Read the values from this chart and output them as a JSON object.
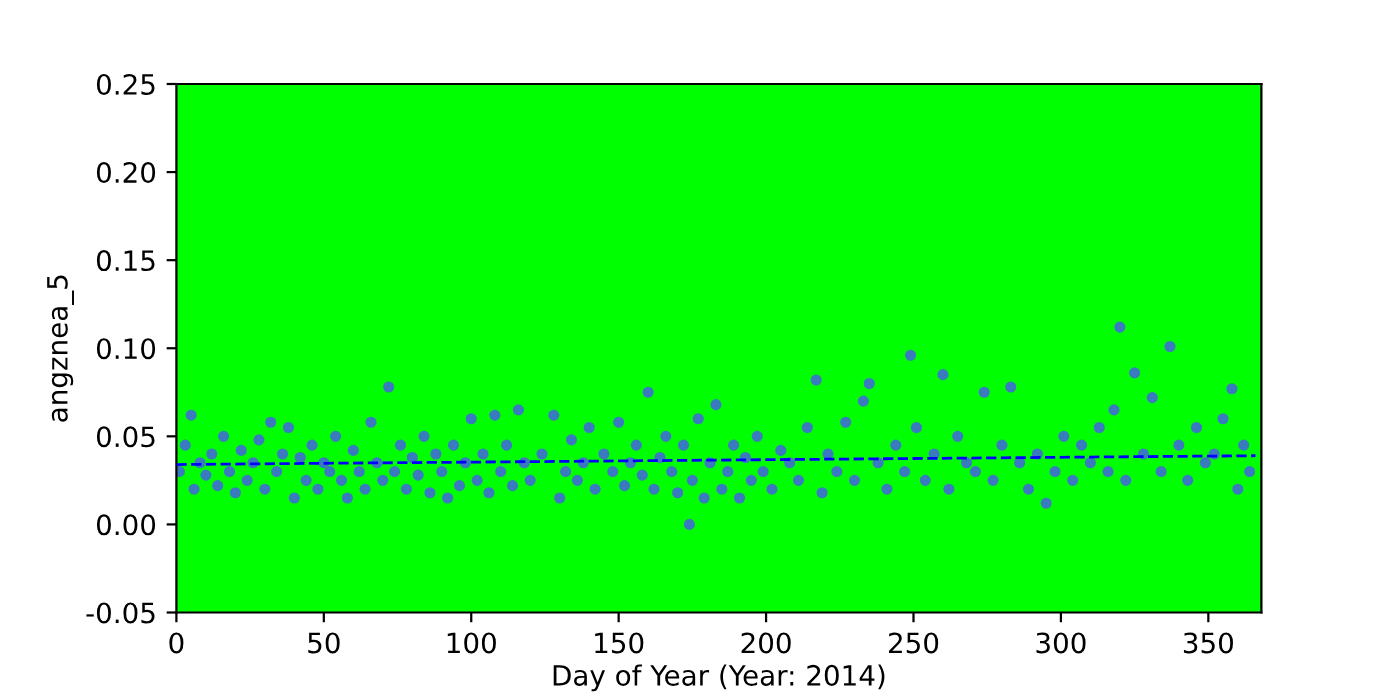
{
  "chart_data": {
    "type": "scatter",
    "xlabel": "Day of Year (Year: 2014)",
    "ylabel": "angznea_5",
    "xlim": [
      0,
      368
    ],
    "ylim": [
      -0.05,
      0.25
    ],
    "xticks": [
      0,
      50,
      100,
      150,
      200,
      250,
      300,
      350
    ],
    "yticks": [
      -0.05,
      {
        "value": 0,
        "label": "0.00"
      },
      0.05,
      {
        "value": 0.1,
        "label": "0.10"
      },
      0.15,
      {
        "value": 0.2,
        "label": "0.20"
      },
      0.25
    ],
    "grid": false,
    "marker": "circle",
    "series": [
      {
        "color": "#3a7bbf",
        "x": [
          1,
          3,
          5,
          6,
          8,
          10,
          12,
          14,
          16,
          18,
          20,
          22,
          24,
          26,
          28,
          30,
          32,
          34,
          36,
          38,
          40,
          42,
          44,
          46,
          48,
          50,
          52,
          54,
          56,
          58,
          60,
          62,
          64,
          66,
          68,
          70,
          72,
          74,
          76,
          78,
          80,
          82,
          84,
          86,
          88,
          90,
          92,
          94,
          96,
          98,
          100,
          102,
          104,
          106,
          108,
          110,
          112,
          114,
          116,
          118,
          120,
          124,
          128,
          130,
          132,
          134,
          136,
          138,
          140,
          142,
          145,
          148,
          150,
          152,
          154,
          156,
          158,
          160,
          162,
          164,
          166,
          168,
          170,
          172,
          174,
          175,
          177,
          179,
          181,
          183,
          185,
          187,
          189,
          191,
          193,
          195,
          197,
          199,
          202,
          205,
          208,
          211,
          214,
          217,
          219,
          221,
          224,
          227,
          230,
          233,
          235,
          238,
          241,
          244,
          247,
          249,
          251,
          254,
          257,
          260,
          262,
          265,
          268,
          271,
          274,
          277,
          280,
          283,
          286,
          289,
          292,
          295,
          298,
          301,
          304,
          307,
          310,
          313,
          316,
          318,
          320,
          322,
          325,
          328,
          331,
          334,
          337,
          340,
          343,
          346,
          349,
          352,
          355,
          358,
          360,
          362,
          364
        ],
        "values": [
          0.03,
          0.045,
          0.062,
          0.02,
          0.035,
          0.028,
          0.04,
          0.022,
          0.05,
          0.03,
          0.018,
          0.042,
          0.025,
          0.035,
          0.048,
          0.02,
          0.058,
          0.03,
          0.04,
          0.055,
          0.015,
          0.038,
          0.025,
          0.045,
          0.02,
          0.035,
          0.03,
          0.05,
          0.025,
          0.015,
          0.042,
          0.03,
          0.02,
          0.058,
          0.035,
          0.025,
          0.078,
          0.03,
          0.045,
          0.02,
          0.038,
          0.028,
          0.05,
          0.018,
          0.04,
          0.03,
          0.015,
          0.045,
          0.022,
          0.035,
          0.06,
          0.025,
          0.04,
          0.018,
          0.062,
          0.03,
          0.045,
          0.022,
          0.065,
          0.035,
          0.025,
          0.04,
          0.062,
          0.015,
          0.03,
          0.048,
          0.025,
          0.035,
          0.055,
          0.02,
          0.04,
          0.03,
          0.058,
          0.022,
          0.035,
          0.045,
          0.028,
          0.075,
          0.02,
          0.038,
          0.05,
          0.03,
          0.018,
          0.045,
          0.0,
          0.025,
          0.06,
          0.015,
          0.035,
          0.068,
          0.02,
          0.03,
          0.045,
          0.015,
          0.038,
          0.025,
          0.05,
          0.03,
          0.02,
          0.042,
          0.035,
          0.025,
          0.055,
          0.082,
          0.018,
          0.04,
          0.03,
          0.058,
          0.025,
          0.07,
          0.08,
          0.035,
          0.02,
          0.045,
          0.03,
          0.096,
          0.055,
          0.025,
          0.04,
          0.085,
          0.02,
          0.05,
          0.035,
          0.03,
          0.075,
          0.025,
          0.045,
          0.078,
          0.035,
          0.02,
          0.04,
          0.012,
          0.03,
          0.05,
          0.025,
          0.045,
          0.035,
          0.055,
          0.03,
          0.065,
          0.112,
          0.025,
          0.086,
          0.04,
          0.072,
          0.03,
          0.101,
          0.045,
          0.025,
          0.055,
          0.035,
          0.04,
          0.06,
          0.077,
          0.02,
          0.045,
          0.03
        ]
      },
      {
        "type": "line",
        "color": "#0000ff",
        "line_style": "dashed",
        "marker": "none",
        "x": [
          0,
          366
        ],
        "values": [
          0.034,
          0.039
        ]
      }
    ]
  }
}
